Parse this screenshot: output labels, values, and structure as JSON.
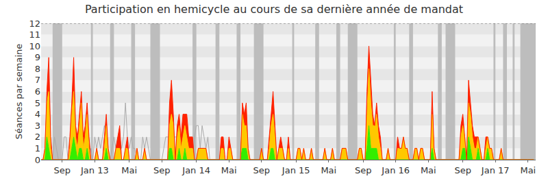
{
  "chart_data": {
    "type": "area",
    "title": "Participation en hemicycle au cours de sa dernière année de mandat",
    "y_label": "Séances par semaine",
    "stacked": true,
    "grid": true,
    "xlim": [
      0,
      258
    ],
    "xticks": [
      {
        "value": 11,
        "label": "Sep"
      },
      {
        "value": 28,
        "label": "Jan 13"
      },
      {
        "value": 46,
        "label": "Mai"
      },
      {
        "value": 63,
        "label": "Sep"
      },
      {
        "value": 81,
        "label": "Jan 14"
      },
      {
        "value": 98,
        "label": "Mai"
      },
      {
        "value": 115,
        "label": "Sep"
      },
      {
        "value": 133,
        "label": "Jan 15"
      },
      {
        "value": 150,
        "label": "Mai"
      },
      {
        "value": 168,
        "label": "Sep"
      },
      {
        "value": 185,
        "label": "Jan 16"
      },
      {
        "value": 202,
        "label": "Mai"
      },
      {
        "value": 220,
        "label": "Sep"
      },
      {
        "value": 237,
        "label": "Jan 17"
      },
      {
        "value": 254,
        "label": "Mai"
      }
    ],
    "ylim": [
      0,
      12
    ],
    "yticks": [
      0,
      1,
      2,
      3,
      4,
      5,
      6,
      7,
      8,
      9,
      10,
      11,
      12
    ],
    "vacations": [
      [
        6,
        11
      ],
      [
        26,
        27
      ],
      [
        36,
        38
      ],
      [
        47,
        49
      ],
      [
        57,
        62
      ],
      [
        79,
        81
      ],
      [
        91,
        93
      ],
      [
        102,
        104
      ],
      [
        111,
        116
      ],
      [
        131,
        132
      ],
      [
        143,
        145
      ],
      [
        154,
        156
      ],
      [
        160,
        165
      ],
      [
        184,
        185
      ],
      [
        192,
        194
      ],
      [
        207,
        209
      ],
      [
        211,
        216
      ],
      [
        236,
        237
      ],
      [
        241,
        243
      ],
      [
        246,
        247
      ],
      [
        250,
        258
      ]
    ],
    "x": [
      0,
      1,
      2,
      3,
      4,
      5,
      6,
      7,
      8,
      9,
      10,
      11,
      12,
      13,
      14,
      15,
      16,
      17,
      18,
      19,
      20,
      21,
      22,
      23,
      24,
      25,
      26,
      27,
      28,
      29,
      30,
      31,
      32,
      33,
      34,
      35,
      36,
      37,
      38,
      39,
      40,
      41,
      42,
      43,
      44,
      45,
      46,
      47,
      48,
      49,
      50,
      51,
      52,
      53,
      54,
      55,
      56,
      57,
      58,
      59,
      60,
      61,
      62,
      63,
      64,
      65,
      66,
      67,
      68,
      69,
      70,
      71,
      72,
      73,
      74,
      75,
      76,
      77,
      78,
      79,
      80,
      81,
      82,
      83,
      84,
      85,
      86,
      87,
      88,
      89,
      90,
      91,
      92,
      93,
      94,
      95,
      96,
      97,
      98,
      99,
      100,
      101,
      102,
      103,
      104,
      105,
      106,
      107,
      108,
      109,
      110,
      111,
      112,
      113,
      114,
      115,
      116,
      117,
      118,
      119,
      120,
      121,
      122,
      123,
      124,
      125,
      126,
      127,
      128,
      129,
      130,
      131,
      132,
      133,
      134,
      135,
      136,
      137,
      138,
      139,
      140,
      141,
      142,
      143,
      144,
      145,
      146,
      147,
      148,
      149,
      150,
      151,
      152,
      153,
      154,
      155,
      156,
      157,
      158,
      159,
      160,
      161,
      162,
      163,
      164,
      165,
      166,
      167,
      168,
      169,
      170,
      171,
      172,
      173,
      174,
      175,
      176,
      177,
      178,
      179,
      180,
      181,
      182,
      183,
      184,
      185,
      186,
      187,
      188,
      189,
      190,
      191,
      192,
      193,
      194,
      195,
      196,
      197,
      198,
      199,
      200,
      201,
      202,
      203,
      204,
      205,
      206,
      207,
      208,
      209,
      210,
      211,
      212,
      213,
      214,
      215,
      216,
      217,
      218,
      219,
      220,
      221,
      222,
      223,
      224,
      225,
      226,
      227,
      228,
      229,
      230,
      231,
      232,
      233,
      234,
      235,
      236,
      237,
      238,
      239,
      240,
      241,
      242,
      243,
      244,
      245,
      246,
      247,
      248,
      249,
      250,
      251,
      252,
      253,
      254,
      255,
      256,
      257
    ],
    "series": [
      {
        "type": "line",
        "color": "#aaaaaa",
        "values": [
          0,
          0,
          0,
          2,
          2,
          0,
          0,
          2,
          1,
          0,
          0,
          0,
          2,
          2,
          0,
          0,
          2,
          2,
          2,
          1,
          0,
          0,
          1,
          2,
          1,
          0,
          1,
          0,
          2,
          1,
          2,
          1,
          2,
          3,
          2,
          0,
          0,
          1,
          2,
          1,
          2,
          2,
          1,
          2,
          5,
          2,
          1,
          2,
          1,
          1,
          0,
          0,
          0,
          2,
          1,
          2,
          1,
          0,
          0,
          0,
          0,
          0,
          0,
          0,
          1,
          2,
          2,
          2,
          2,
          2,
          2,
          2,
          2,
          2,
          2,
          2,
          2,
          1,
          0,
          0,
          2,
          3,
          3,
          1,
          3,
          2,
          1,
          2,
          0,
          0,
          0,
          0,
          0,
          0,
          0,
          0,
          0,
          0,
          0,
          0,
          0,
          0,
          0,
          0,
          0,
          0,
          0,
          0,
          0,
          0,
          0,
          0,
          0,
          0,
          0,
          0,
          0,
          0,
          0,
          0,
          0,
          0,
          0,
          0,
          0,
          0,
          0,
          0,
          0,
          0,
          0,
          0,
          0,
          0,
          0,
          0,
          0,
          0,
          0,
          0,
          0,
          0,
          0,
          0,
          0,
          0,
          0,
          0,
          0,
          0,
          0,
          0,
          0,
          0,
          0,
          0,
          0,
          0,
          0,
          0,
          0,
          0,
          0,
          0,
          0,
          0,
          0,
          0,
          0,
          0,
          0,
          0,
          0,
          0,
          0,
          0,
          0,
          0,
          0,
          0,
          0,
          0,
          0,
          0,
          0,
          0,
          0,
          0,
          0,
          0,
          0,
          0,
          0,
          0,
          0,
          0,
          0,
          0,
          0,
          0,
          0,
          0,
          0,
          0,
          0,
          0,
          0,
          0,
          0,
          0,
          0,
          0,
          0,
          0,
          0,
          0,
          0,
          0,
          0,
          0,
          0,
          0,
          0,
          0,
          0,
          0,
          0,
          0,
          0,
          0,
          0,
          0,
          0,
          0,
          0,
          0,
          0,
          0,
          0,
          0,
          0,
          0,
          0,
          0,
          0,
          0,
          0,
          0,
          0,
          0,
          0,
          0,
          0,
          0,
          0,
          0,
          0,
          0
        ]
      },
      {
        "type": "area",
        "color": "#33ee00",
        "values": [
          0,
          0,
          0,
          2,
          1,
          0,
          0,
          0,
          0,
          0,
          0,
          0,
          0,
          0,
          0,
          0,
          1,
          2,
          1,
          0,
          1,
          1,
          0,
          0,
          1,
          0,
          0,
          0,
          0,
          0,
          0,
          0,
          0,
          0,
          1,
          0,
          0,
          0,
          0,
          0,
          0,
          0,
          0,
          0,
          0,
          0,
          0,
          0,
          0,
          0,
          0,
          0,
          0,
          0,
          0,
          0,
          0,
          0,
          0,
          0,
          0,
          0,
          0,
          0,
          0,
          0,
          0,
          1,
          1,
          0,
          0,
          0,
          1,
          0,
          0,
          1,
          0,
          0,
          0,
          0,
          0,
          0,
          0,
          0,
          0,
          0,
          0,
          0,
          0,
          0,
          0,
          0,
          0,
          0,
          0,
          0,
          0,
          0,
          0,
          0,
          0,
          0,
          0,
          0,
          0,
          1,
          1,
          1,
          0,
          0,
          0,
          0,
          0,
          0,
          0,
          0,
          0,
          0,
          0,
          0,
          1,
          1,
          0,
          0,
          0,
          0,
          0,
          0,
          0,
          0,
          0,
          0,
          0,
          0,
          0,
          0,
          0,
          0,
          0,
          0,
          0,
          0,
          0,
          0,
          0,
          0,
          0,
          0,
          0,
          0,
          0,
          0,
          0,
          0,
          0,
          0,
          0,
          0,
          0,
          0,
          0,
          0,
          0,
          0,
          0,
          0,
          0,
          0,
          0,
          0,
          1,
          3,
          1,
          1,
          1,
          1,
          0,
          0,
          0,
          0,
          0,
          0,
          0,
          0,
          0,
          0,
          0,
          0,
          0,
          0,
          0,
          0,
          0,
          0,
          0,
          0,
          0,
          0,
          0,
          0,
          0,
          0,
          0,
          0,
          1,
          0,
          0,
          0,
          0,
          0,
          0,
          0,
          0,
          0,
          0,
          0,
          0,
          0,
          0,
          0,
          1,
          1,
          0,
          2,
          1,
          0,
          0,
          0,
          1,
          0,
          0,
          0,
          0,
          1,
          0,
          0,
          0,
          0,
          0,
          0,
          0,
          0,
          0,
          0,
          0,
          0,
          0,
          0,
          0,
          0,
          0,
          0,
          0,
          0,
          0,
          0,
          0,
          0
        ]
      },
      {
        "type": "area",
        "color": "#ffc800",
        "values": [
          0,
          0,
          1,
          3,
          5,
          1,
          0,
          0,
          0,
          0,
          0,
          0,
          0,
          0,
          0,
          1,
          3,
          4,
          1,
          1,
          2,
          4,
          1,
          2,
          3,
          1,
          0,
          0,
          0,
          1,
          0,
          0,
          0,
          1,
          2,
          1,
          0,
          0,
          0,
          1,
          1,
          1,
          0,
          0,
          1,
          1,
          0,
          0,
          0,
          0,
          1,
          0,
          0,
          0,
          1,
          0,
          0,
          0,
          0,
          0,
          0,
          0,
          0,
          0,
          0,
          0,
          0,
          2,
          3,
          3,
          0,
          2,
          2,
          1,
          2,
          2,
          2,
          1,
          1,
          1,
          0,
          0,
          1,
          1,
          1,
          1,
          1,
          0,
          0,
          0,
          0,
          0,
          0,
          0,
          1,
          1,
          0,
          0,
          1,
          1,
          0,
          0,
          0,
          0,
          0,
          3,
          2,
          2,
          1,
          0,
          0,
          0,
          0,
          0,
          0,
          1,
          0,
          0,
          0,
          1,
          2,
          3,
          2,
          0,
          1,
          1,
          1,
          0,
          0,
          1,
          0,
          0,
          0,
          0,
          1,
          1,
          0,
          1,
          0,
          0,
          0,
          1,
          0,
          0,
          0,
          0,
          0,
          0,
          1,
          0,
          0,
          0,
          1,
          0,
          0,
          0,
          0,
          1,
          1,
          1,
          0,
          0,
          0,
          0,
          0,
          0,
          1,
          1,
          0,
          0,
          3,
          5,
          4,
          2,
          2,
          3,
          2,
          1,
          0,
          0,
          0,
          1,
          0,
          0,
          0,
          0,
          1,
          1,
          1,
          2,
          1,
          1,
          0,
          0,
          0,
          1,
          1,
          0,
          1,
          1,
          0,
          0,
          0,
          0,
          3,
          1,
          0,
          0,
          0,
          0,
          0,
          0,
          0,
          0,
          0,
          0,
          0,
          0,
          0,
          2,
          2,
          1,
          0,
          3,
          3,
          2,
          1,
          1,
          1,
          1,
          0,
          0,
          1,
          1,
          1,
          1,
          0,
          0,
          0,
          0,
          1,
          0,
          0,
          0,
          0,
          0,
          0,
          0,
          0,
          0,
          0,
          0,
          0,
          0,
          0,
          0,
          0,
          0
        ]
      },
      {
        "type": "area",
        "color": "#ff2200",
        "values": [
          0,
          0,
          0,
          1,
          3,
          1,
          0,
          0,
          0,
          0,
          0,
          0,
          0,
          0,
          0,
          1,
          1,
          3,
          1,
          1,
          1,
          1,
          1,
          1,
          1,
          1,
          0,
          0,
          0,
          0,
          0,
          0,
          0,
          1,
          1,
          0,
          0,
          0,
          0,
          0,
          1,
          2,
          0,
          0,
          0,
          1,
          0,
          0,
          0,
          0,
          0,
          0,
          0,
          0,
          0,
          0,
          0,
          0,
          0,
          0,
          0,
          0,
          0,
          0,
          0,
          0,
          0,
          2,
          3,
          1,
          0,
          1,
          1,
          1,
          2,
          1,
          2,
          1,
          1,
          1,
          0,
          0,
          0,
          0,
          0,
          0,
          0,
          0,
          0,
          0,
          0,
          0,
          0,
          0,
          1,
          1,
          0,
          0,
          1,
          0,
          0,
          0,
          0,
          0,
          0,
          1,
          1,
          2,
          0,
          0,
          0,
          0,
          0,
          0,
          0,
          0,
          0,
          0,
          0,
          1,
          1,
          2,
          1,
          0,
          0,
          1,
          0,
          0,
          0,
          1,
          0,
          0,
          0,
          0,
          0,
          0,
          0,
          0,
          0,
          0,
          0,
          0,
          0,
          0,
          0,
          0,
          0,
          0,
          0,
          0,
          0,
          0,
          0,
          0,
          0,
          0,
          0,
          0,
          0,
          0,
          0,
          0,
          0,
          0,
          0,
          0,
          0,
          0,
          0,
          0,
          2,
          2,
          2,
          1,
          0,
          1,
          1,
          1,
          0,
          0,
          0,
          0,
          0,
          0,
          0,
          0,
          1,
          0,
          0,
          0,
          0,
          0,
          0,
          0,
          0,
          0,
          0,
          0,
          0,
          0,
          0,
          0,
          0,
          0,
          2,
          0,
          0,
          0,
          0,
          0,
          0,
          0,
          0,
          0,
          0,
          0,
          0,
          0,
          0,
          1,
          1,
          0,
          0,
          2,
          1,
          1,
          1,
          1,
          0,
          0,
          0,
          0,
          1,
          0,
          0,
          0,
          0,
          0,
          0,
          0,
          0,
          0,
          0,
          0,
          0,
          0,
          0,
          0,
          0,
          0,
          0,
          0,
          0,
          0,
          0,
          0,
          0,
          0
        ]
      }
    ]
  }
}
